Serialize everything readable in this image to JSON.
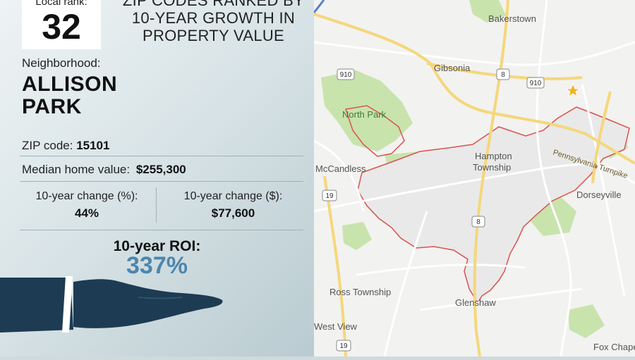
{
  "panel": {
    "rank_label": "Local rank:",
    "rank_value": "32",
    "headline_lines": [
      "ZIP CODES RANKED BY",
      "10-YEAR GROWTH IN",
      "PROPERTY VALUE"
    ],
    "neighborhood_label": "Neighborhood:",
    "neighborhood_lines": [
      "ALLISON",
      "PARK"
    ],
    "zip_label": "ZIP code:",
    "zip_value": "15101",
    "median_label": "Median home value:",
    "median_value": "$255,300",
    "change_pct_label": "10-year change (%):",
    "change_pct_value": "44%",
    "change_usd_label": "10-year change ($):",
    "change_usd_value": "$77,600",
    "roi_label": "10-year ROI:",
    "roi_value": "337%"
  },
  "map": {
    "places": {
      "bakerstown": "Bakerstown",
      "gibsonia": "Gibsonia",
      "north_park": "North Park",
      "hampton_1": "Hampton",
      "hampton_2": "Township",
      "mccandless": "McCandless",
      "dorseyville": "Dorseyville",
      "ross": "Ross Township",
      "glenshaw": "Glenshaw",
      "west_view": "West View",
      "fox_chapel": "Fox Chapel",
      "turnpike": "Pennsylvania Turnpike"
    },
    "shields": {
      "r910a": "910",
      "r910b": "910",
      "r8a": "8",
      "r8b": "8",
      "r19a": "19",
      "r19b": "19"
    },
    "colors": {
      "base": "#f2f2f0",
      "park": "#c9e3ad",
      "highlight": "#e9e9e9",
      "boundary": "#d9534f",
      "highway": "#f5d77b",
      "road": "#ffffff"
    }
  },
  "colors": {
    "accent": "#4d86ad",
    "hand": "#1d3b52",
    "cuff": "#ffffff"
  }
}
